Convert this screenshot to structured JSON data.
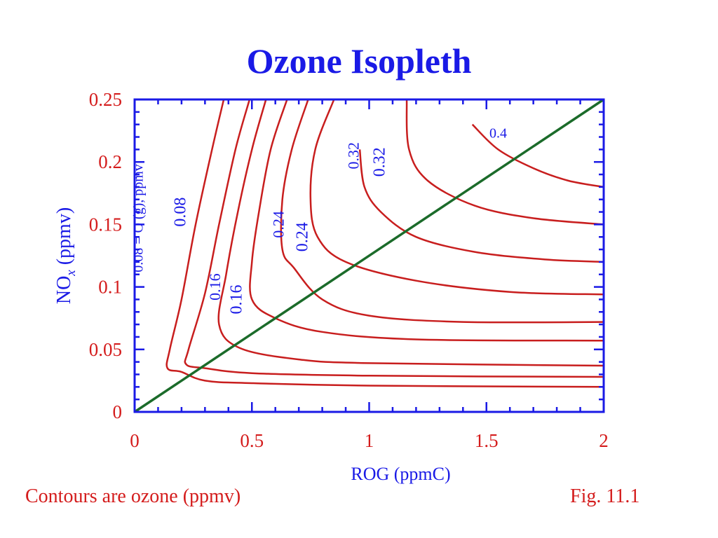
{
  "slide": {
    "title": "Ozone Isopleth",
    "caption_left": "Contours are ozone (ppmv)",
    "caption_right": "Fig. 11.1"
  },
  "colors": {
    "title": "#1a1ae6",
    "axis": "#1a1ae6",
    "tick_label": "#d41c1c",
    "contour": "#c81e1e",
    "contour_label": "#1a1ae6",
    "ratio_line": "#1b6b2a"
  },
  "chart_data": {
    "type": "line",
    "title": "Ozone Isopleth",
    "xlabel": "ROG (ppmC)",
    "ylabel_main": "NO",
    "ylabel_sub": "x",
    "ylabel_rest": " (ppmv)",
    "xlim": [
      0,
      2
    ],
    "ylim": [
      0,
      0.25
    ],
    "x_ticks": [
      {
        "value": 0,
        "label": "0"
      },
      {
        "value": 0.5,
        "label": "0.5"
      },
      {
        "value": 1,
        "label": "1"
      },
      {
        "value": 1.5,
        "label": "1.5"
      },
      {
        "value": 2,
        "label": "2"
      }
    ],
    "y_ticks": [
      {
        "value": 0,
        "label": "0"
      },
      {
        "value": 0.05,
        "label": "0.05"
      },
      {
        "value": 0.1,
        "label": "0.1"
      },
      {
        "value": 0.15,
        "label": "0.15"
      },
      {
        "value": 0.2,
        "label": "0.2"
      },
      {
        "value": 0.25,
        "label": "0.25"
      }
    ],
    "grid": false,
    "contours": [
      {
        "points": [
          [
            0.38,
            0.25
          ],
          [
            0.33,
            0.21
          ],
          [
            0.26,
            0.15
          ],
          [
            0.2,
            0.09
          ],
          [
            0.15,
            0.05
          ],
          [
            0.14,
            0.035
          ],
          [
            0.2,
            0.032
          ],
          [
            0.3,
            0.025
          ],
          [
            0.5,
            0.023
          ],
          [
            1.0,
            0.021
          ],
          [
            2.0,
            0.02
          ]
        ]
      },
      {
        "points": [
          [
            0.49,
            0.25
          ],
          [
            0.43,
            0.21
          ],
          [
            0.36,
            0.15
          ],
          [
            0.3,
            0.095
          ],
          [
            0.23,
            0.05
          ],
          [
            0.22,
            0.038
          ],
          [
            0.3,
            0.035
          ],
          [
            0.5,
            0.031
          ],
          [
            1.0,
            0.029
          ],
          [
            2.0,
            0.028
          ]
        ]
      },
      {
        "points": [
          [
            0.56,
            0.25
          ],
          [
            0.5,
            0.21
          ],
          [
            0.44,
            0.16
          ],
          [
            0.39,
            0.11
          ],
          [
            0.36,
            0.07
          ],
          [
            0.45,
            0.051
          ],
          [
            0.7,
            0.042
          ],
          [
            1.0,
            0.039
          ],
          [
            2.0,
            0.037
          ]
        ]
      },
      {
        "points": [
          [
            0.65,
            0.25
          ],
          [
            0.58,
            0.21
          ],
          [
            0.53,
            0.16
          ],
          [
            0.5,
            0.12
          ],
          [
            0.5,
            0.09
          ],
          [
            0.6,
            0.075
          ],
          [
            0.8,
            0.064
          ],
          [
            1.2,
            0.058
          ],
          [
            2.0,
            0.057
          ]
        ]
      },
      {
        "points": [
          [
            0.74,
            0.25
          ],
          [
            0.67,
            0.21
          ],
          [
            0.63,
            0.17
          ],
          [
            0.63,
            0.13
          ],
          [
            0.68,
            0.115
          ],
          [
            0.8,
            0.09
          ],
          [
            1.0,
            0.077
          ],
          [
            1.4,
            0.072
          ],
          [
            2.0,
            0.072
          ]
        ]
      },
      {
        "points": [
          [
            0.85,
            0.25
          ],
          [
            0.77,
            0.21
          ],
          [
            0.75,
            0.17
          ],
          [
            0.78,
            0.14
          ],
          [
            0.9,
            0.12
          ],
          [
            1.2,
            0.105
          ],
          [
            1.6,
            0.096
          ],
          [
            2.0,
            0.094
          ]
        ]
      },
      {
        "points": [
          [
            0.96,
            0.21
          ],
          [
            0.98,
            0.18
          ],
          [
            1.05,
            0.16
          ],
          [
            1.2,
            0.14
          ],
          [
            1.45,
            0.128
          ],
          [
            1.75,
            0.122
          ],
          [
            2.0,
            0.12
          ]
        ]
      },
      {
        "points": [
          [
            1.16,
            0.25
          ],
          [
            1.17,
            0.21
          ],
          [
            1.25,
            0.185
          ],
          [
            1.45,
            0.165
          ],
          [
            1.7,
            0.155
          ],
          [
            2.0,
            0.15
          ]
        ]
      },
      {
        "points": [
          [
            1.44,
            0.23
          ],
          [
            1.55,
            0.21
          ],
          [
            1.7,
            0.195
          ],
          [
            1.85,
            0.185
          ],
          [
            2.0,
            0.18
          ]
        ]
      }
    ],
    "contour_labels": [
      {
        "text": "0.08",
        "x": 0.2,
        "y": 0.16,
        "rotate": -90,
        "size": 24
      },
      {
        "text": "0.16",
        "x": 0.44,
        "y": 0.09,
        "rotate": -90,
        "size": 24
      },
      {
        "text": "0.16",
        "x": 0.35,
        "y": 0.1,
        "rotate": -90,
        "size": 22
      },
      {
        "text": "0.24",
        "x": 0.72,
        "y": 0.14,
        "rotate": -90,
        "size": 24
      },
      {
        "text": "0.24",
        "x": 0.62,
        "y": 0.15,
        "rotate": -90,
        "size": 22
      },
      {
        "text": "0.32",
        "x": 1.05,
        "y": 0.2,
        "rotate": -90,
        "size": 24
      },
      {
        "text": "0.32",
        "x": 0.94,
        "y": 0.205,
        "rotate": -90,
        "size": 22
      },
      {
        "text": "0.4",
        "x": 1.55,
        "y": 0.222,
        "rotate": 0,
        "size": 20
      },
      {
        "text": "0.08 = O  (g), ppmv",
        "x": 0.02,
        "y": 0.155,
        "rotate": -90,
        "size": 20
      }
    ],
    "ratio_line": {
      "from": [
        0,
        0
      ],
      "to": [
        2,
        0.25
      ]
    }
  }
}
